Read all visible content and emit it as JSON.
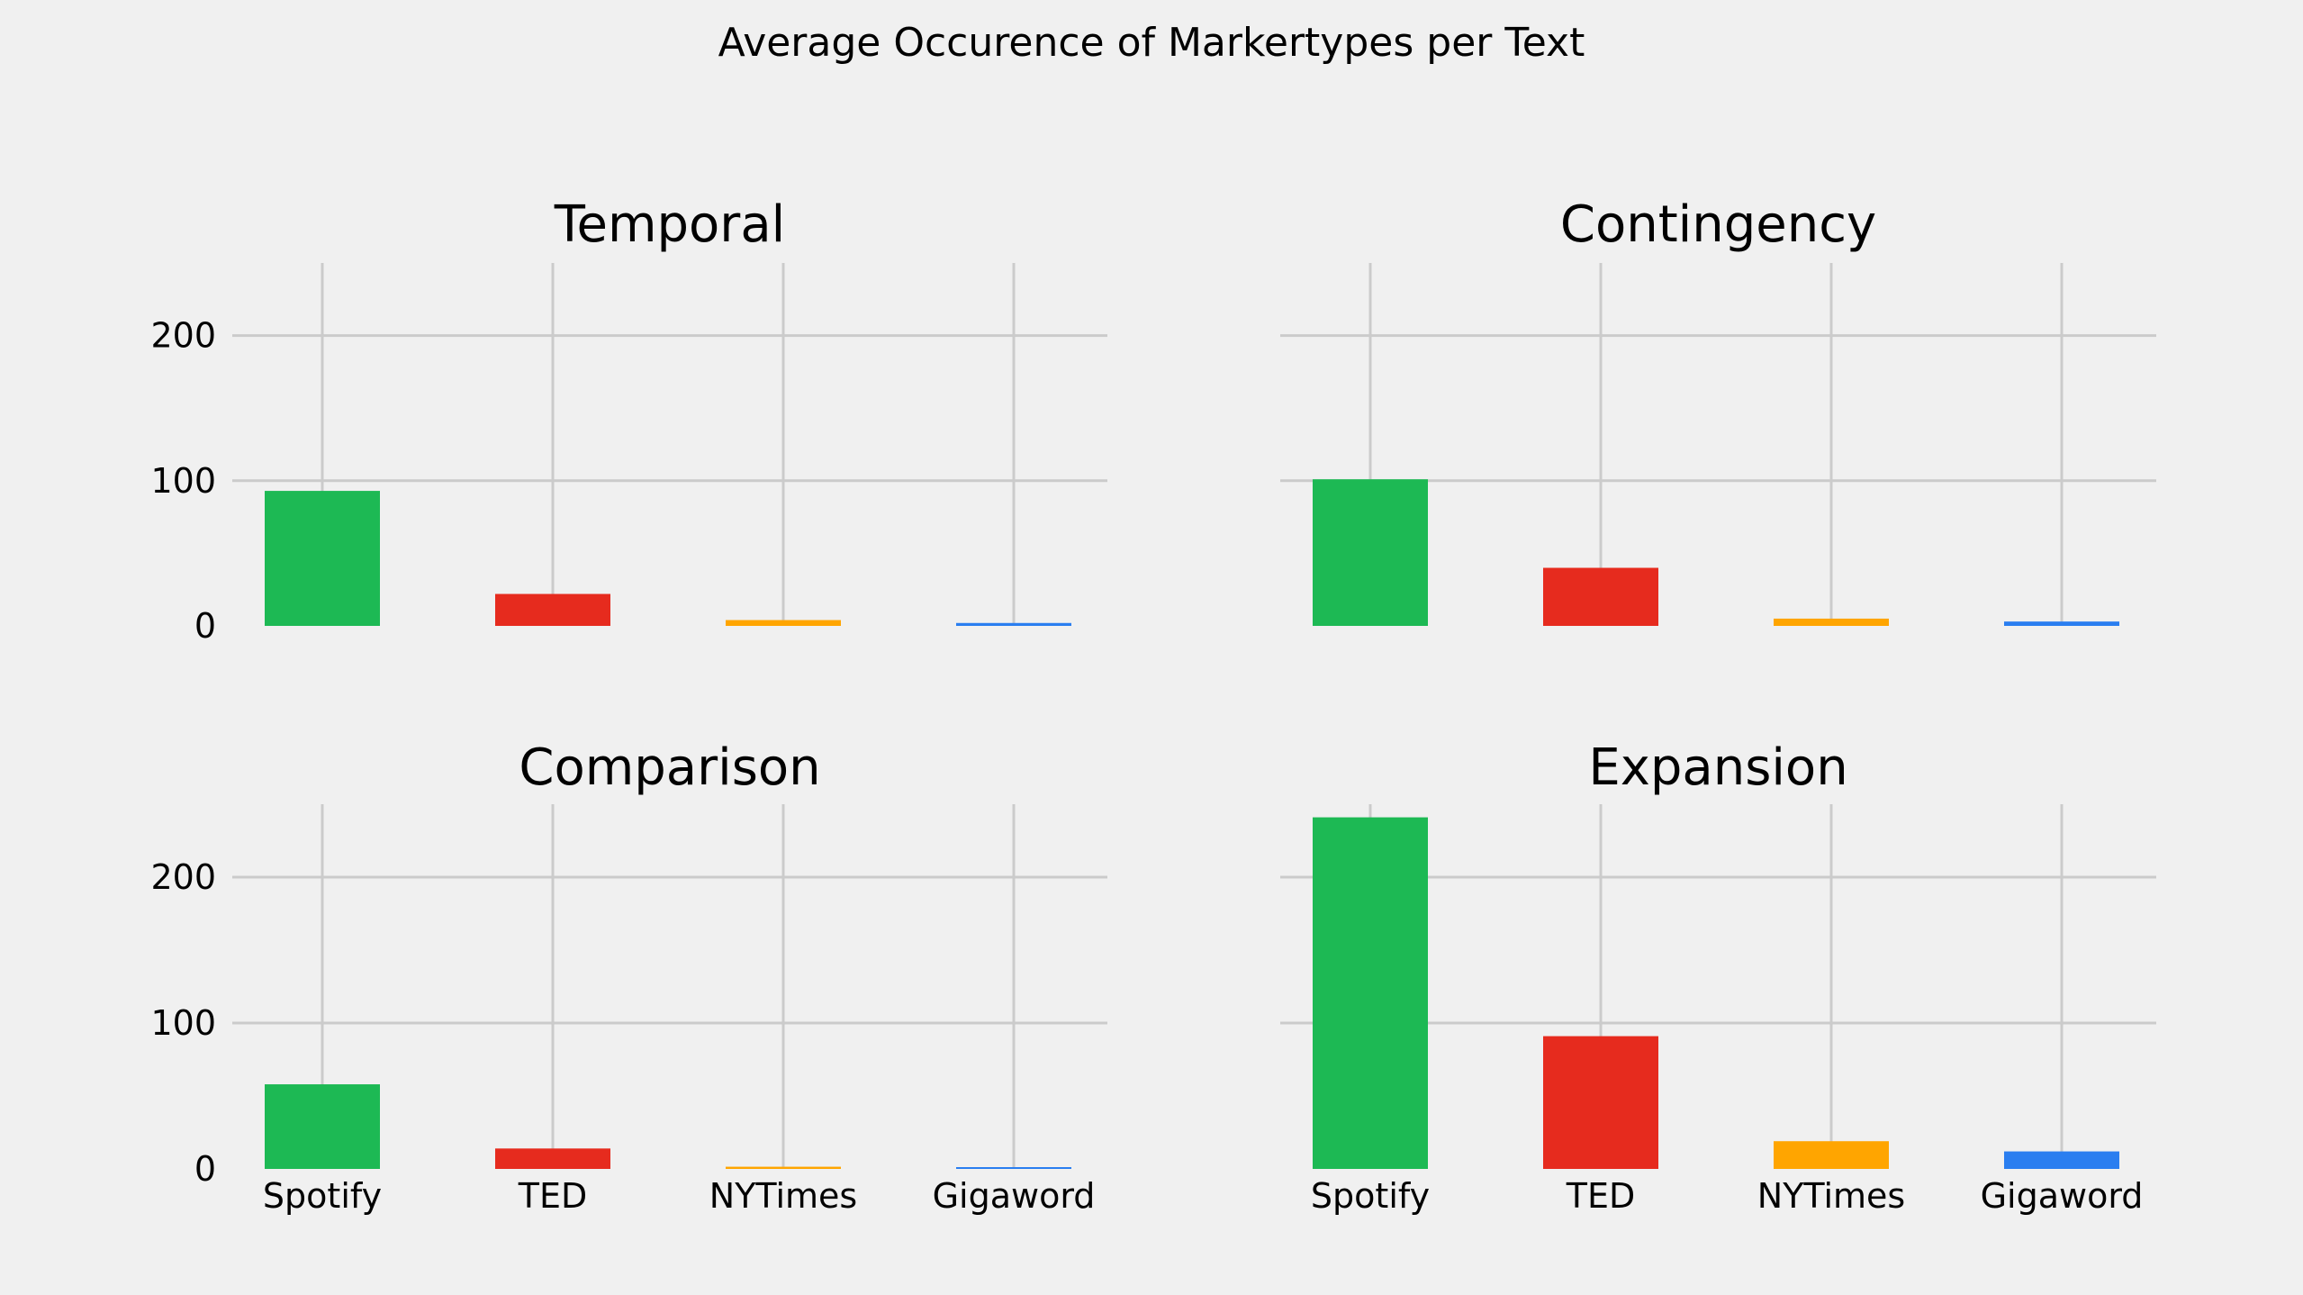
{
  "chart_data": {
    "type": "bar",
    "title": "Average Occurence of Markertypes per Text",
    "categories": [
      "Spotify",
      "TED",
      "NYTimes",
      "Gigaword"
    ],
    "colors": [
      "#1db954",
      "#e62b1e",
      "#ffa500",
      "#2a7ef0"
    ],
    "ylim": [
      0,
      250
    ],
    "yticks": [
      0,
      100,
      200
    ],
    "grid": true,
    "panels": [
      {
        "title": "Temporal",
        "values": [
          93,
          22,
          4,
          2
        ]
      },
      {
        "title": "Contingency",
        "values": [
          101,
          40,
          5,
          3
        ]
      },
      {
        "title": "Comparison",
        "values": [
          58,
          14,
          1.5,
          1
        ]
      },
      {
        "title": "Expansion",
        "values": [
          241,
          91,
          19,
          12
        ]
      }
    ]
  }
}
